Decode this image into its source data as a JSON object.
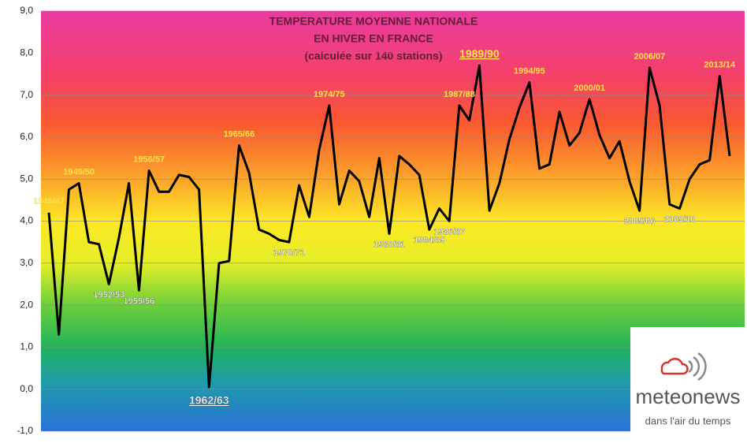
{
  "chart_data": {
    "type": "line",
    "title": [
      "TEMPERATURE MOYENNE NATIONALE",
      "EN HIVER EN FRANCE",
      "(calculée sur 140 stations)"
    ],
    "categories": [
      "1946/47",
      null,
      null,
      "1949/50",
      null,
      null,
      "1952/53",
      null,
      null,
      "1955/56",
      "1956/57",
      null,
      null,
      null,
      null,
      null,
      "1962/63",
      null,
      null,
      "1965/66",
      null,
      null,
      null,
      null,
      "1970/71",
      null,
      null,
      null,
      "1974/75",
      null,
      null,
      null,
      null,
      null,
      "1980/81",
      null,
      null,
      null,
      "1984/85",
      null,
      "1986/87",
      "1987/88",
      null,
      "1989/90",
      null,
      null,
      null,
      null,
      "1994/95",
      null,
      null,
      null,
      null,
      null,
      "2000/01",
      null,
      null,
      null,
      null,
      "2005/06",
      "2006/07",
      null,
      null,
      "2009/10",
      null,
      null,
      null,
      "2013/14",
      null
    ],
    "series": [
      {
        "color": "#000000",
        "values": [
          4.2,
          1.3,
          4.75,
          4.9,
          3.5,
          3.45,
          2.5,
          3.6,
          4.9,
          2.35,
          5.2,
          4.7,
          4.7,
          5.1,
          5.05,
          4.75,
          0.05,
          3.0,
          3.05,
          5.8,
          5.15,
          3.8,
          3.7,
          3.55,
          3.5,
          4.85,
          4.1,
          5.7,
          6.75,
          4.4,
          5.2,
          4.95,
          4.1,
          5.5,
          3.7,
          5.55,
          5.35,
          5.1,
          3.8,
          4.3,
          4.0,
          6.75,
          6.4,
          7.7,
          4.25,
          4.9,
          5.95,
          6.7,
          7.3,
          5.25,
          5.35,
          6.6,
          5.8,
          6.1,
          6.9,
          6.05,
          5.5,
          5.9,
          4.95,
          4.25,
          7.65,
          6.75,
          4.4,
          4.3,
          5.0,
          5.35,
          5.45,
          7.45,
          5.55
        ]
      }
    ],
    "ylim": [
      -1,
      9
    ],
    "yticks": [
      {
        "value": -1,
        "label": "-1,0"
      },
      {
        "value": 0,
        "label": "0,0"
      },
      {
        "value": 1,
        "label": "1,0"
      },
      {
        "value": 2,
        "label": "2,0"
      },
      {
        "value": 3,
        "label": "3,0"
      },
      {
        "value": 4,
        "label": "4,0"
      },
      {
        "value": 5,
        "label": "5,0"
      },
      {
        "value": 6,
        "label": "6,0"
      },
      {
        "value": 7,
        "label": "7,0"
      },
      {
        "value": 8,
        "label": "8,0"
      },
      {
        "value": 9,
        "label": "9,0"
      }
    ],
    "grid": true
  },
  "logo": {
    "name": "meteonews",
    "tagline": "dans l'air du temps"
  }
}
